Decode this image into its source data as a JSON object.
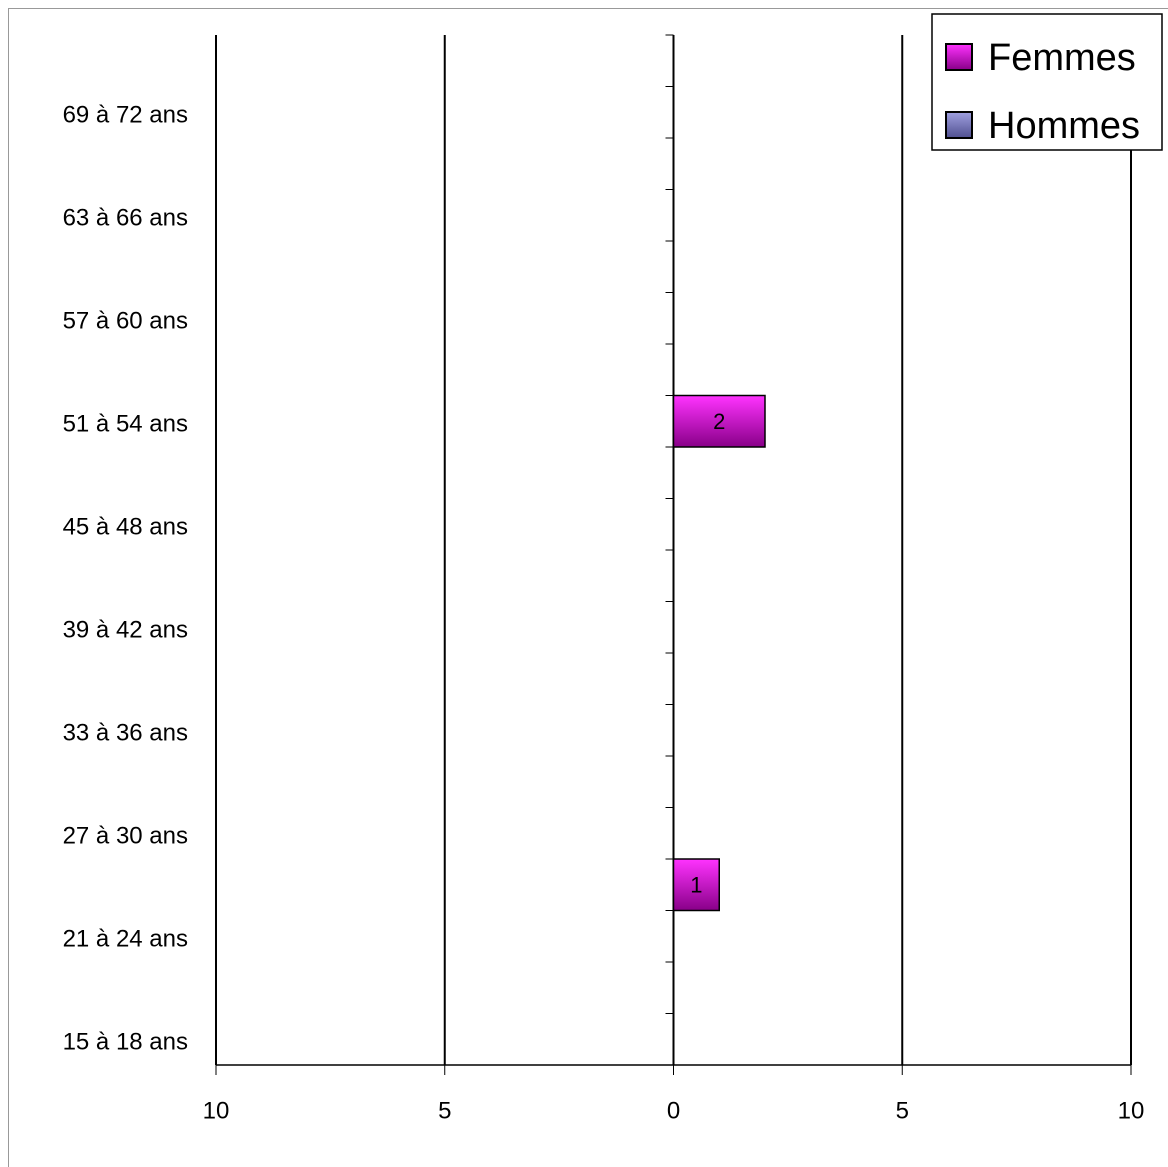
{
  "chart_data": {
    "type": "pyramid",
    "categories": [
      "15 à 18 ans",
      null,
      "21 à 24 ans",
      null,
      "27 à 30 ans",
      null,
      "33 à 36 ans",
      null,
      "39 à 42 ans",
      null,
      "45 à 48 ans",
      null,
      "51 à 54 ans",
      null,
      "57 à 60 ans",
      null,
      "63 à 66 ans",
      null,
      "69 à 72 ans",
      null
    ],
    "series": [
      {
        "name": "Femmes",
        "color": "#cc00cc",
        "side": "right",
        "values": [
          0,
          0,
          0,
          1,
          0,
          0,
          0,
          0,
          0,
          0,
          0,
          0,
          2,
          0,
          0,
          0,
          0,
          0,
          0,
          0
        ]
      },
      {
        "name": "Hommes",
        "color": "#7070b8",
        "side": "left",
        "values": [
          0,
          0,
          0,
          0,
          0,
          0,
          0,
          0,
          0,
          0,
          0,
          0,
          0,
          0,
          0,
          0,
          0,
          0,
          0,
          0
        ]
      }
    ],
    "xlim": [
      -10,
      10
    ],
    "xticks": [
      {
        "value": -10,
        "label": "10"
      },
      {
        "value": -5,
        "label": "5"
      },
      0,
      5,
      10
    ],
    "grid": true,
    "legend": "top-right"
  }
}
